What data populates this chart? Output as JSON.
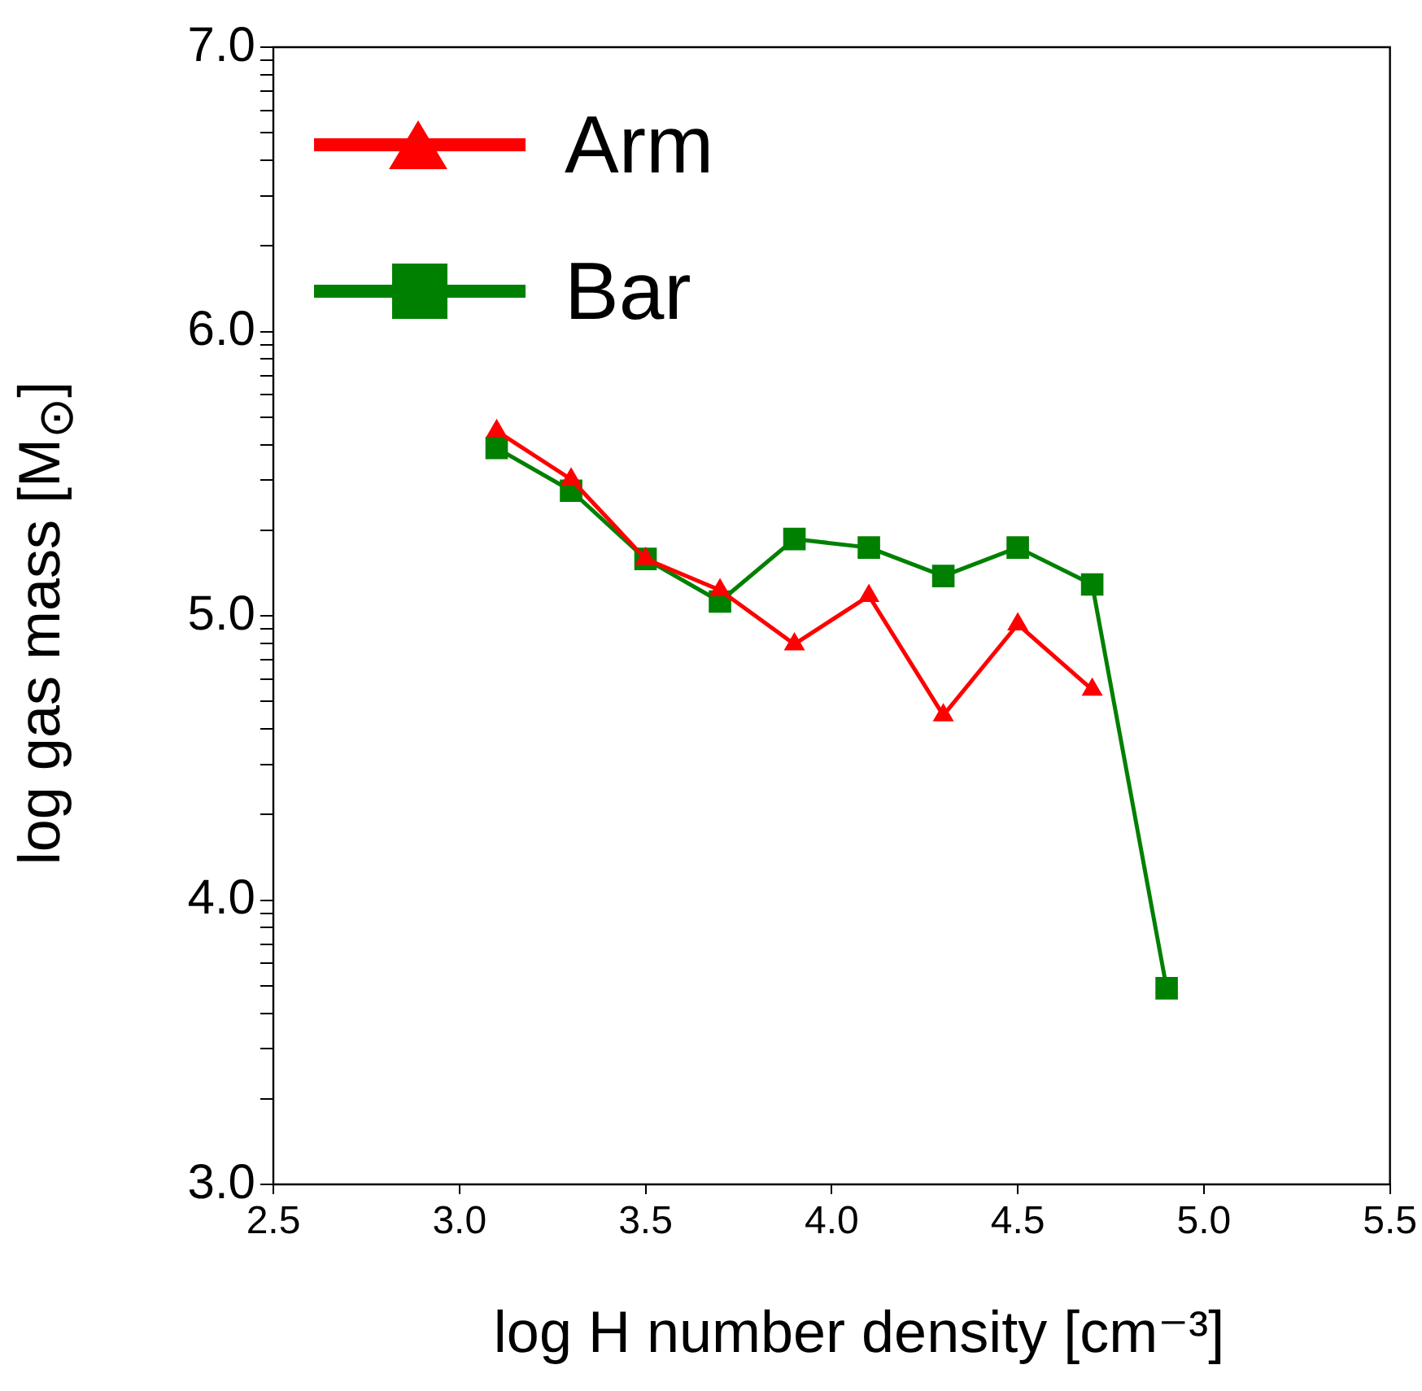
{
  "chart_data": {
    "type": "line",
    "xlabel": "log H number density [cm⁻³]",
    "ylabel": "log gas mass [M$_{⊙}$]",
    "x": [
      3.1,
      3.3,
      3.5,
      3.7,
      3.9,
      4.1,
      4.3,
      4.5,
      4.7,
      4.9
    ],
    "series": [
      {
        "name": "Arm",
        "color": "#ff0000",
        "marker": "triangle",
        "x": [
          3.1,
          3.3,
          3.5,
          3.7,
          3.9,
          4.1,
          4.3,
          4.5,
          4.7
        ],
        "values": [
          5.65,
          5.48,
          5.2,
          5.09,
          4.9,
          5.07,
          4.65,
          4.97,
          4.74
        ]
      },
      {
        "name": "Bar",
        "color": "#008000",
        "marker": "square",
        "values": [
          5.59,
          5.44,
          5.2,
          5.05,
          5.27,
          5.24,
          5.14,
          5.24,
          5.11,
          3.69
        ]
      }
    ],
    "xlim": [
      2.5,
      5.5
    ],
    "xticks": [
      2.5,
      {
        "value": 3.0,
        "label": "3.0"
      },
      3.5,
      {
        "value": 4.0,
        "label": "4.0"
      },
      4.5,
      {
        "value": 5.0,
        "label": "5.0"
      },
      5.5
    ],
    "ylim": [
      3.0,
      7.0
    ],
    "yticks": [
      {
        "value": 3.0,
        "label": "3.0"
      },
      {
        "value": 3.301,
        "label": null
      },
      {
        "value": 3.477,
        "label": null
      },
      {
        "value": 3.602,
        "label": null
      },
      {
        "value": 3.699,
        "label": null
      },
      {
        "value": 3.778,
        "label": null
      },
      {
        "value": 3.845,
        "label": null
      },
      {
        "value": 3.903,
        "label": null
      },
      {
        "value": 3.954,
        "label": null
      },
      {
        "value": 4.0,
        "label": "4.0"
      },
      {
        "value": 4.301,
        "label": null
      },
      {
        "value": 4.477,
        "label": null
      },
      {
        "value": 4.602,
        "label": null
      },
      {
        "value": 4.699,
        "label": null
      },
      {
        "value": 4.778,
        "label": null
      },
      {
        "value": 4.845,
        "label": null
      },
      {
        "value": 4.903,
        "label": null
      },
      {
        "value": 4.954,
        "label": null
      },
      {
        "value": 5.0,
        "label": "5.0"
      },
      {
        "value": 5.301,
        "label": null
      },
      {
        "value": 5.477,
        "label": null
      },
      {
        "value": 5.602,
        "label": null
      },
      {
        "value": 5.699,
        "label": null
      },
      {
        "value": 5.778,
        "label": null
      },
      {
        "value": 5.845,
        "label": null
      },
      {
        "value": 5.903,
        "label": null
      },
      {
        "value": 5.954,
        "label": null
      },
      {
        "value": 6.0,
        "label": "6.0"
      },
      {
        "value": 6.301,
        "label": null
      },
      {
        "value": 6.477,
        "label": null
      },
      {
        "value": 6.602,
        "label": null
      },
      {
        "value": 6.699,
        "label": null
      },
      {
        "value": 6.778,
        "label": null
      },
      {
        "value": 6.845,
        "label": null
      },
      {
        "value": 6.903,
        "label": null
      },
      {
        "value": 6.954,
        "label": null
      },
      {
        "value": 7.0,
        "label": "7.0"
      }
    ],
    "grid": false,
    "legend": "top left",
    "line_style": "solid"
  }
}
